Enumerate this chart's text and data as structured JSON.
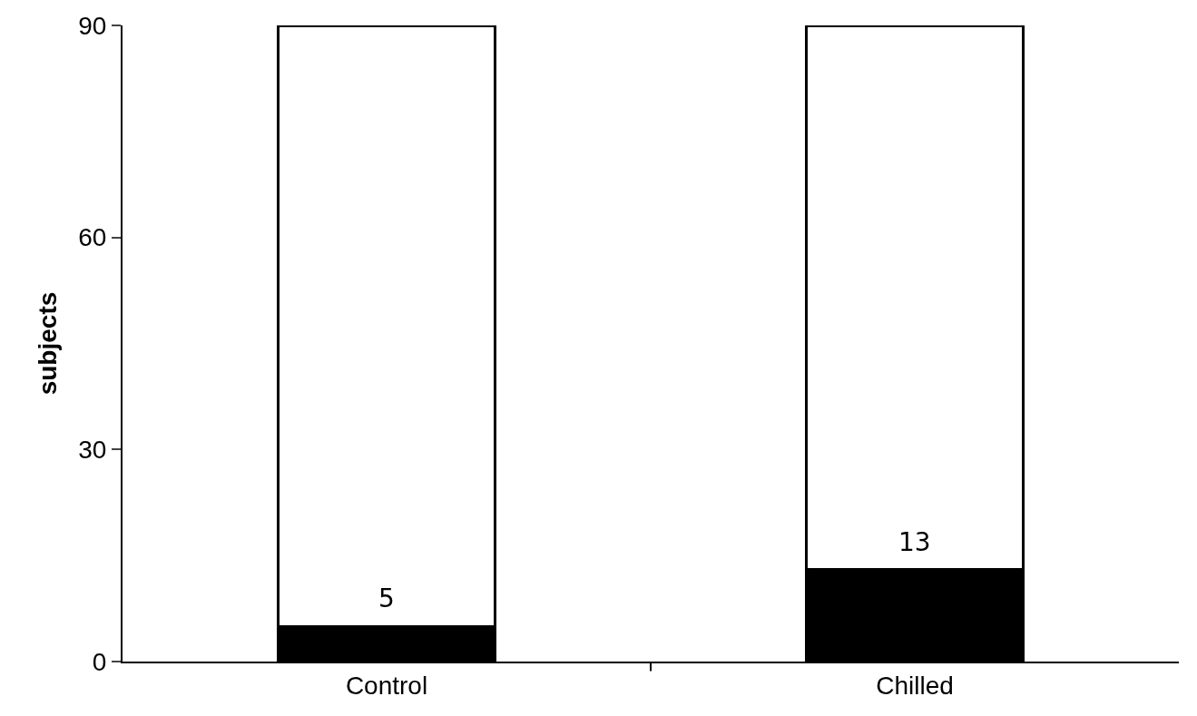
{
  "chart_data": {
    "type": "bar",
    "stacked": true,
    "categories": [
      "Control",
      "Chilled"
    ],
    "ylabel": "subjects",
    "ylim": [
      0,
      90
    ],
    "yticks": [
      0,
      30,
      60,
      90
    ],
    "series": [
      {
        "color": "#000000",
        "values": [
          5,
          13
        ],
        "value_labels": [
          "5",
          "13"
        ]
      },
      {
        "color": "#ffffff",
        "values": [
          85,
          77
        ]
      }
    ]
  }
}
